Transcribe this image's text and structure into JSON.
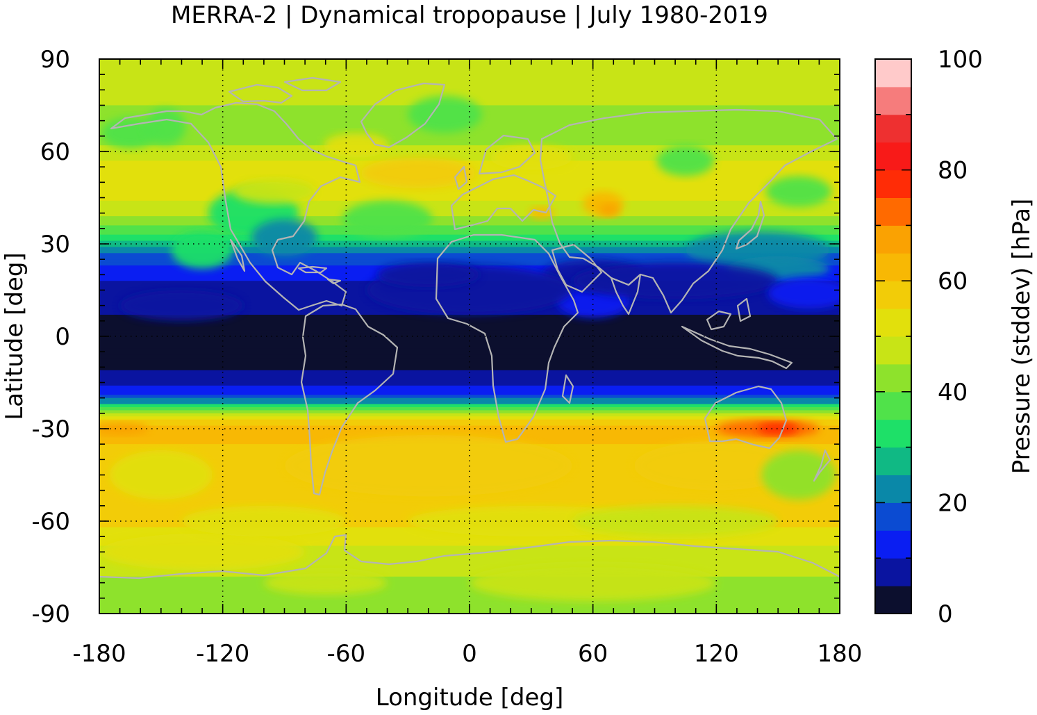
{
  "chart_data": {
    "type": "heatmap",
    "title": "MERRA-2 | Dynamical tropopause | July 1980-2019",
    "xlabel": "Longitude [deg]",
    "ylabel": "Latitude [deg]",
    "colorbar_label": "Pressure (stddev) [hPa]",
    "xlim": [
      -180,
      180
    ],
    "ylim": [
      -90,
      90
    ],
    "x_ticks": [
      "-180",
      "-120",
      "-60",
      "0",
      "60",
      "120",
      "180"
    ],
    "y_ticks": [
      "90",
      "60",
      "30",
      "0",
      "-30",
      "-60",
      "-90"
    ],
    "colorbar_ticks": [
      "0",
      "20",
      "40",
      "60",
      "80",
      "100"
    ],
    "colorbar_range": [
      0,
      100
    ],
    "grid": true,
    "coastlines_color": "#b4b4b4",
    "colorbar_levels": [
      {
        "from": 0,
        "to": 5,
        "color": "#0c0f2e"
      },
      {
        "from": 5,
        "to": 10,
        "color": "#0a14a0"
      },
      {
        "from": 10,
        "to": 15,
        "color": "#0a1ef2"
      },
      {
        "from": 15,
        "to": 20,
        "color": "#0b4bd2"
      },
      {
        "from": 20,
        "to": 25,
        "color": "#0a88a8"
      },
      {
        "from": 25,
        "to": 30,
        "color": "#10b984"
      },
      {
        "from": 30,
        "to": 35,
        "color": "#1ee068"
      },
      {
        "from": 35,
        "to": 40,
        "color": "#50e24a"
      },
      {
        "from": 40,
        "to": 45,
        "color": "#8ee22c"
      },
      {
        "from": 45,
        "to": 50,
        "color": "#c8e416"
      },
      {
        "from": 50,
        "to": 55,
        "color": "#e2e00c"
      },
      {
        "from": 55,
        "to": 60,
        "color": "#f2cc08"
      },
      {
        "from": 60,
        "to": 65,
        "color": "#f8b804"
      },
      {
        "from": 65,
        "to": 70,
        "color": "#faa202"
      },
      {
        "from": 70,
        "to": 75,
        "color": "#ff6a00"
      },
      {
        "from": 75,
        "to": 80,
        "color": "#ff2c06"
      },
      {
        "from": 80,
        "to": 85,
        "color": "#f81a18"
      },
      {
        "from": 85,
        "to": 90,
        "color": "#ee3030"
      },
      {
        "from": 90,
        "to": 95,
        "color": "#f67c7c"
      },
      {
        "from": 95,
        "to": 100,
        "color": "#ffcaca"
      }
    ],
    "zonal_profile": [
      {
        "lat": 90,
        "value": 47
      },
      {
        "lat": 75,
        "value": 45
      },
      {
        "lat": 65,
        "value": 42
      },
      {
        "lat": 55,
        "value": 52
      },
      {
        "lat": 48,
        "value": 53
      },
      {
        "lat": 40,
        "value": 47
      },
      {
        "lat": 33,
        "value": 36
      },
      {
        "lat": 28,
        "value": 22
      },
      {
        "lat": 23,
        "value": 15
      },
      {
        "lat": 18,
        "value": 10
      },
      {
        "lat": 10,
        "value": 6
      },
      {
        "lat": 0,
        "value": 3
      },
      {
        "lat": -10,
        "value": 4
      },
      {
        "lat": -15,
        "value": 8
      },
      {
        "lat": -18,
        "value": 12
      },
      {
        "lat": -21,
        "value": 22
      },
      {
        "lat": -24,
        "value": 38
      },
      {
        "lat": -27,
        "value": 55
      },
      {
        "lat": -30,
        "value": 64
      },
      {
        "lat": -35,
        "value": 60
      },
      {
        "lat": -45,
        "value": 59
      },
      {
        "lat": -55,
        "value": 57
      },
      {
        "lat": -62,
        "value": 55
      },
      {
        "lat": -70,
        "value": 48
      },
      {
        "lat": -80,
        "value": 44
      },
      {
        "lat": -90,
        "value": 41
      }
    ]
  }
}
